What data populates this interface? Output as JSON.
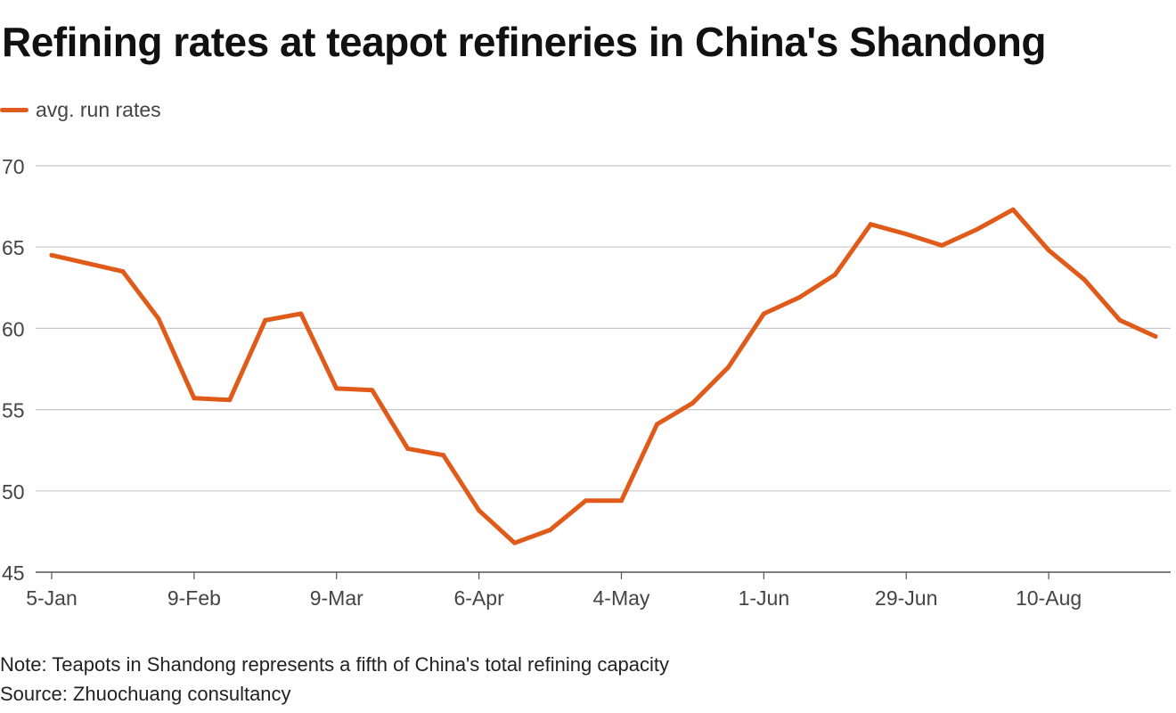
{
  "title": "Refining rates at teapot refineries in China's Shandong",
  "note": "Note: Teapots in Shandong represents a fifth of China's total refining capacity",
  "source": "Source: Zhuochuang consultancy",
  "colors": {
    "line": "#e05a1a",
    "grid": "#c8c8c8",
    "axis": "#555555"
  },
  "chart_data": {
    "type": "line",
    "title": "Refining rates at teapot refineries in China's Shandong",
    "xlabel": "",
    "ylabel": "",
    "ylim": [
      45,
      70
    ],
    "yticks": [
      45,
      50,
      55,
      60,
      65,
      70
    ],
    "grid": true,
    "legend_position": "top-left",
    "x_tick_labels": [
      "5-Jan",
      "9-Feb",
      "9-Mar",
      "6-Apr",
      "4-May",
      "1-Jun",
      "29-Jun",
      "10-Aug"
    ],
    "x_tick_positions": [
      0,
      4,
      8,
      12,
      16,
      20,
      24,
      28
    ],
    "series": [
      {
        "name": "avg. run rates",
        "values": [
          64.5,
          64.0,
          63.5,
          60.6,
          55.7,
          55.6,
          60.5,
          60.9,
          56.3,
          56.2,
          52.6,
          52.2,
          48.8,
          46.8,
          47.6,
          49.4,
          49.4,
          54.1,
          55.4,
          57.6,
          60.9,
          61.9,
          63.3,
          66.4,
          65.8,
          65.1,
          66.1,
          67.3,
          64.8,
          63.0,
          60.5,
          59.5
        ]
      }
    ]
  }
}
